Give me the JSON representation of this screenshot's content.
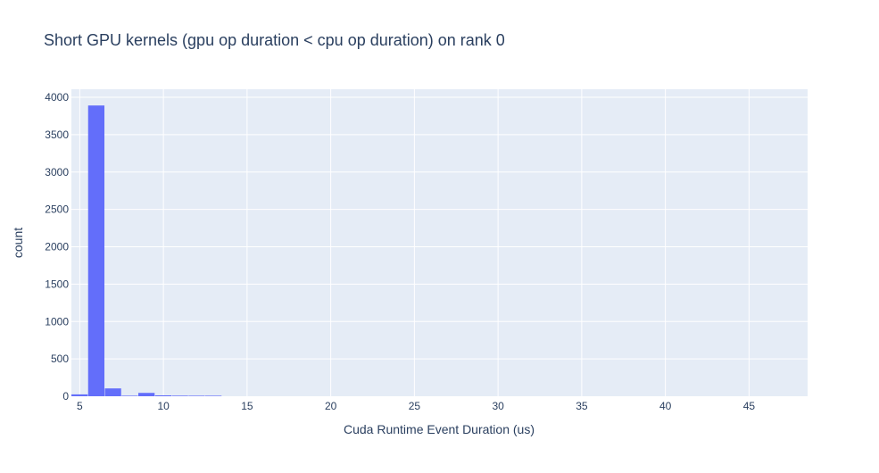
{
  "chart_data": {
    "type": "bar",
    "title": "Short GPU kernels (gpu op duration < cpu op duration) on rank 0",
    "xlabel": "Cuda Runtime Event Duration (us)",
    "ylabel": "count",
    "xlim": [
      4.5,
      48.5
    ],
    "ylim": [
      0,
      4000
    ],
    "x_ticks": [
      5,
      10,
      15,
      20,
      25,
      30,
      35,
      40,
      45
    ],
    "y_ticks": [
      0,
      500,
      1000,
      1500,
      2000,
      2500,
      3000,
      3500,
      4000
    ],
    "bin_width": 1,
    "grid": true,
    "legend": "none",
    "bars": [
      {
        "x_start": 4.5,
        "x_end": 5.5,
        "count": 25
      },
      {
        "x_start": 5.5,
        "x_end": 6.5,
        "count": 3890
      },
      {
        "x_start": 6.5,
        "x_end": 7.5,
        "count": 105
      },
      {
        "x_start": 7.5,
        "x_end": 8.5,
        "count": 6
      },
      {
        "x_start": 8.5,
        "x_end": 9.5,
        "count": 45
      },
      {
        "x_start": 9.5,
        "x_end": 10.5,
        "count": 12
      },
      {
        "x_start": 10.5,
        "x_end": 11.5,
        "count": 8
      },
      {
        "x_start": 11.5,
        "x_end": 12.5,
        "count": 2
      },
      {
        "x_start": 12.5,
        "x_end": 13.5,
        "count": 1
      }
    ]
  },
  "colors": {
    "bar": "#636efa",
    "plot_bg": "#e5ecf6",
    "grid": "#ffffff",
    "text": "#2a3f5f"
  }
}
